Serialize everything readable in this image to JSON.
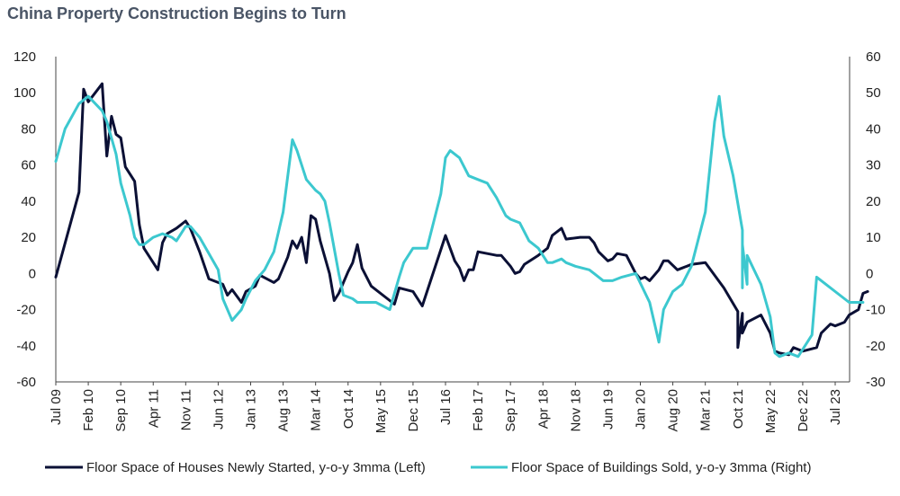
{
  "chart_data": {
    "type": "line",
    "title": "China Property Construction Begins to Turn",
    "x_ticks": [
      "Jul 09",
      "Feb 10",
      "Sep 10",
      "Apr 11",
      "Nov 11",
      "Jun 12",
      "Jan 13",
      "Aug 13",
      "Mar 14",
      "Oct 14",
      "May 15",
      "Dec 15",
      "Jul 16",
      "Feb 17",
      "Sep 17",
      "Apr 18",
      "Nov 18",
      "Jun 19",
      "Jan 20",
      "Aug 20",
      "Mar 21",
      "Oct 21",
      "May 22",
      "Dec 22",
      "Jul 23"
    ],
    "y_left": {
      "ylim": [
        -60,
        120
      ],
      "ticks": [
        120,
        100,
        80,
        60,
        40,
        20,
        0,
        -20,
        -40,
        -60
      ]
    },
    "y_right": {
      "ylim": [
        -30,
        60
      ],
      "ticks": [
        60,
        50,
        40,
        30,
        20,
        10,
        0,
        -10,
        -20,
        -30
      ]
    },
    "legend_position": "bottom",
    "series": [
      {
        "name": "Floor Space of Houses Newly Started, y-o-y 3mma (Left)",
        "axis": "left",
        "color": "#0b1035",
        "points": [
          [
            "Jul 09",
            -2
          ],
          [
            "Dec 09",
            45
          ],
          [
            "Jan 10",
            102
          ],
          [
            "Feb 10",
            95
          ],
          [
            "May 10",
            105
          ],
          [
            "Jun 10",
            65
          ],
          [
            "Jul 10",
            87
          ],
          [
            "Aug 10",
            77
          ],
          [
            "Sep 10",
            75
          ],
          [
            "Oct 10",
            59
          ],
          [
            "Dec 10",
            51
          ],
          [
            "Jan 11",
            27
          ],
          [
            "Feb 11",
            14
          ],
          [
            "May 11",
            2
          ],
          [
            "Jun 11",
            17
          ],
          [
            "Jul 11",
            22
          ],
          [
            "Sep 11",
            25
          ],
          [
            "Nov 11",
            29
          ],
          [
            "Dec 11",
            25
          ],
          [
            "Feb 12",
            12
          ],
          [
            "Apr 12",
            -3
          ],
          [
            "Jul 12",
            -6
          ],
          [
            "Aug 12",
            -12
          ],
          [
            "Sep 12",
            -9
          ],
          [
            "Nov 12",
            -16
          ],
          [
            "Dec 12",
            -10
          ],
          [
            "Feb 13",
            -7
          ],
          [
            "Mar 13",
            -1
          ],
          [
            "Jun 13",
            -5
          ],
          [
            "Jul 13",
            -3
          ],
          [
            "Sep 13",
            9
          ],
          [
            "Oct 13",
            18
          ],
          [
            "Nov 13",
            14
          ],
          [
            "Dec 13",
            20
          ],
          [
            "Jan 14",
            6
          ],
          [
            "Feb 14",
            32
          ],
          [
            "Mar 14",
            30
          ],
          [
            "Apr 14",
            18
          ],
          [
            "Jun 14",
            0
          ],
          [
            "Jul 14",
            -15
          ],
          [
            "Aug 14",
            -11
          ],
          [
            "Oct 14",
            1
          ],
          [
            "Nov 14",
            6
          ],
          [
            "Dec 14",
            16
          ],
          [
            "Jan 15",
            3
          ],
          [
            "Mar 15",
            -7
          ],
          [
            "Jul 15",
            -15
          ],
          [
            "Aug 15",
            -17
          ],
          [
            "Sep 15",
            -8
          ],
          [
            "Dec 15",
            -10
          ],
          [
            "Feb 16",
            -18
          ],
          [
            "Jul 16",
            21
          ],
          [
            "Sep 16",
            7
          ],
          [
            "Oct 16",
            3
          ],
          [
            "Nov 16",
            -4
          ],
          [
            "Dec 16",
            2
          ],
          [
            "Jan 17",
            2
          ],
          [
            "Feb 17",
            12
          ],
          [
            "Jun 17",
            10
          ],
          [
            "Jul 17",
            10
          ],
          [
            "Sep 17",
            4
          ],
          [
            "Oct 17",
            0
          ],
          [
            "Nov 17",
            1
          ],
          [
            "Dec 17",
            5
          ],
          [
            "Mar 18",
            10
          ],
          [
            "May 18",
            14
          ],
          [
            "Jun 18",
            21
          ],
          [
            "Aug 18",
            25
          ],
          [
            "Sep 18",
            19
          ],
          [
            "Dec 18",
            20
          ],
          [
            "Feb 19",
            20
          ],
          [
            "Mar 19",
            17
          ],
          [
            "Apr 19",
            12
          ],
          [
            "Jun 19",
            7
          ],
          [
            "Jul 19",
            8
          ],
          [
            "Aug 19",
            11
          ],
          [
            "Oct 19",
            10
          ],
          [
            "Nov 19",
            5
          ],
          [
            "Dec 19",
            0
          ],
          [
            "Jan 20",
            -3
          ],
          [
            "Feb 20",
            -2
          ],
          [
            "Mar 20",
            -4
          ],
          [
            "May 20",
            2
          ],
          [
            "Jun 20",
            7
          ],
          [
            "Jul 20",
            7
          ],
          [
            "Sep 20",
            2
          ],
          [
            "Oct 20",
            3
          ],
          [
            "Dec 20",
            5
          ],
          [
            "Mar 21",
            6
          ],
          [
            "Jul 21",
            -8
          ],
          [
            "Oct 21",
            -21
          ],
          [
            "Oct 21",
            -41
          ],
          [
            "Nov 21",
            -22
          ],
          [
            "Nov 21",
            -33
          ],
          [
            "Dec 21",
            -27
          ],
          [
            "Mar 22",
            -23
          ],
          [
            "May 22",
            -33
          ],
          [
            "Jun 22",
            -43
          ],
          [
            "Jul 22",
            -44
          ],
          [
            "Sep 22",
            -45
          ],
          [
            "Oct 22",
            -41
          ],
          [
            "Dec 22",
            -43
          ],
          [
            "Mar 23",
            -41
          ],
          [
            "Apr 23",
            -33
          ],
          [
            "Jun 23",
            -28
          ],
          [
            "Jul 23",
            -29
          ],
          [
            "Sep 23",
            -27
          ],
          [
            "Oct 23",
            -23
          ],
          [
            "Dec 23",
            -20
          ],
          [
            "Jan 24",
            -11
          ],
          [
            "Feb 24",
            -10
          ]
        ]
      },
      {
        "name": "Floor Space  of Buildings Sold, y-o-y 3mma (Right)",
        "axis": "right",
        "color": "#3cc8cf",
        "points": [
          [
            "Jul 09",
            31
          ],
          [
            "Sep 09",
            40
          ],
          [
            "Dec 09",
            47
          ],
          [
            "Feb 10",
            49
          ],
          [
            "May 10",
            45
          ],
          [
            "Jun 10",
            42
          ],
          [
            "Aug 10",
            33
          ],
          [
            "Sep 10",
            25
          ],
          [
            "Nov 10",
            16
          ],
          [
            "Dec 10",
            10
          ],
          [
            "Jan 11",
            8
          ],
          [
            "Feb 11",
            8
          ],
          [
            "Apr 11",
            10
          ],
          [
            "Jun 11",
            11
          ],
          [
            "Aug 11",
            10
          ],
          [
            "Sep 11",
            9
          ],
          [
            "Nov 11",
            13
          ],
          [
            "Dec 11",
            13
          ],
          [
            "Feb 12",
            10
          ],
          [
            "Jun 12",
            1
          ],
          [
            "Jul 12",
            -7
          ],
          [
            "Sep 12",
            -13
          ],
          [
            "Nov 12",
            -10
          ],
          [
            "Dec 12",
            -7
          ],
          [
            "Feb 13",
            -2
          ],
          [
            "Apr 13",
            1
          ],
          [
            "Jun 13",
            6
          ],
          [
            "Aug 13",
            17
          ],
          [
            "Oct 13",
            37
          ],
          [
            "Nov 13",
            34
          ],
          [
            "Jan 14",
            26
          ],
          [
            "Mar 14",
            23
          ],
          [
            "Apr 14",
            22
          ],
          [
            "May 14",
            20
          ],
          [
            "Jun 14",
            14
          ],
          [
            "Aug 14",
            0
          ],
          [
            "Sep 14",
            -6
          ],
          [
            "Nov 14",
            -7
          ],
          [
            "Dec 14",
            -8
          ],
          [
            "Apr 15",
            -8
          ],
          [
            "Jul 15",
            -10
          ],
          [
            "Sep 15",
            -1
          ],
          [
            "Oct 15",
            3
          ],
          [
            "Dec 15",
            7
          ],
          [
            "Jan 16",
            7
          ],
          [
            "Mar 16",
            7
          ],
          [
            "Jun 16",
            22
          ],
          [
            "Jul 16",
            32
          ],
          [
            "Aug 16",
            34
          ],
          [
            "Oct 16",
            32
          ],
          [
            "Dec 16",
            27
          ],
          [
            "Feb 17",
            26
          ],
          [
            "Apr 17",
            25
          ],
          [
            "Jun 17",
            21
          ],
          [
            "Aug 17",
            16
          ],
          [
            "Sep 17",
            15
          ],
          [
            "Nov 17",
            14
          ],
          [
            "Jan 18",
            9
          ],
          [
            "Mar 18",
            7
          ],
          [
            "May 18",
            3
          ],
          [
            "Jun 18",
            3
          ],
          [
            "Aug 18",
            4
          ],
          [
            "Sep 18",
            3
          ],
          [
            "Nov 18",
            2
          ],
          [
            "Feb 19",
            1
          ],
          [
            "Mar 19",
            0
          ],
          [
            "May 19",
            -2
          ],
          [
            "Jul 19",
            -2
          ],
          [
            "Sep 19",
            -1
          ],
          [
            "Dec 19",
            0
          ],
          [
            "Mar 20",
            -8
          ],
          [
            "May 20",
            -19
          ],
          [
            "Jun 20",
            -10
          ],
          [
            "Aug 20",
            -5
          ],
          [
            "Oct 20",
            -3
          ],
          [
            "Dec 20",
            2
          ],
          [
            "Mar 21",
            17
          ],
          [
            "May 21",
            42
          ],
          [
            "Jun 21",
            49
          ],
          [
            "Jul 21",
            38
          ],
          [
            "Sep 21",
            27
          ],
          [
            "Nov 21",
            12
          ],
          [
            "Nov 21",
            -4
          ],
          [
            "Nov 21",
            8
          ],
          [
            "Dec 21",
            -3
          ],
          [
            "Dec 21",
            5
          ],
          [
            "Mar 22",
            -3
          ],
          [
            "May 22",
            -12
          ],
          [
            "Jun 22",
            -22
          ],
          [
            "Jul 22",
            -23
          ],
          [
            "Sep 22",
            -22
          ],
          [
            "Nov 22",
            -23
          ],
          [
            "Feb 23",
            -17
          ],
          [
            "Mar 23",
            -1
          ],
          [
            "May 23",
            -3
          ],
          [
            "Aug 23",
            -6
          ],
          [
            "Oct 23",
            -8
          ],
          [
            "Jan 24",
            -8
          ]
        ]
      }
    ]
  }
}
